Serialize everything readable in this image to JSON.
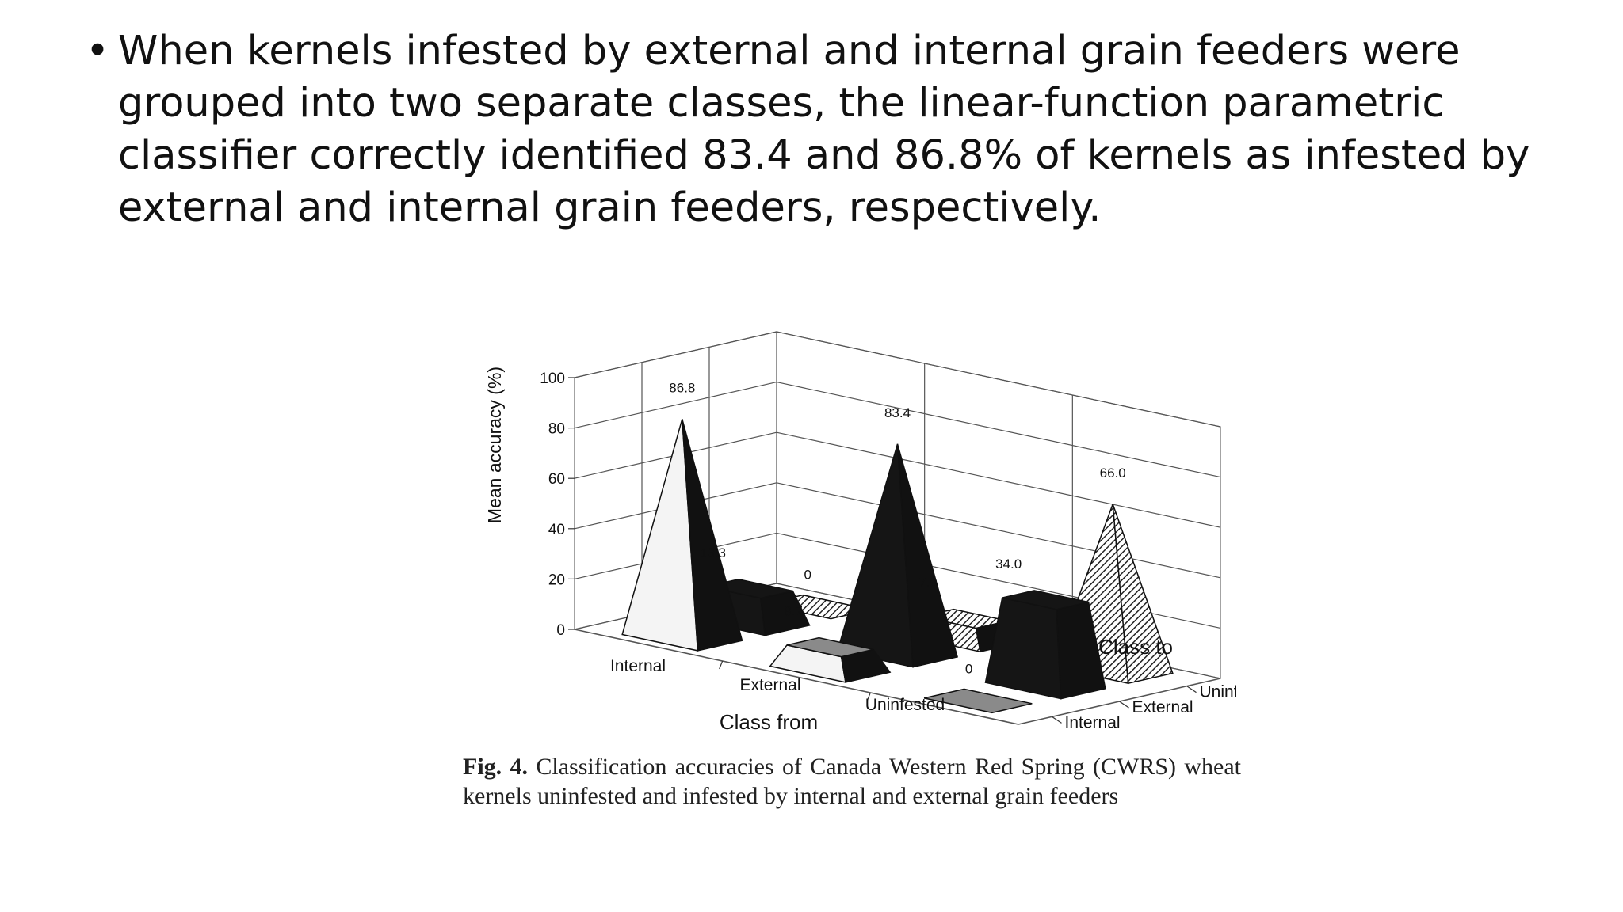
{
  "slide": {
    "bullet_symbol": "•",
    "bullet_text": "When kernels infested by external and internal grain feeders were grouped into two separate classes, the linear-function parametric classifier correctly identified 83.4 and 86.8% of kernels as infested by external and internal grain feeders, respectively."
  },
  "figure": {
    "caption_label": "Fig. 4.",
    "caption_text": "Classification accuracies of Canada Western Red Spring (CWRS) wheat kernels uninfested and infested by internal and external grain feeders"
  },
  "chart_data": {
    "type": "bar",
    "subtype": "3d-pyramid",
    "ylabel": "Mean accuracy (%)",
    "xlabel": "Class from",
    "zlabel": "Class to",
    "ylim": [
      0,
      100
    ],
    "yticks": [
      "0",
      "20",
      "40",
      "60",
      "80",
      "100"
    ],
    "x_categories": [
      "Internal",
      "External",
      "Uninfested"
    ],
    "z_categories": [
      "Internal",
      "External",
      "Uninfested"
    ],
    "grid": true,
    "points": [
      {
        "from": "Internal",
        "to": "Internal",
        "value": 86.8,
        "label": "86.8",
        "shape": "pyramid",
        "fill": "light"
      },
      {
        "from": "Internal",
        "to": "External",
        "value": 13.3,
        "label": "13.3",
        "shape": "block",
        "fill": "dark"
      },
      {
        "from": "Internal",
        "to": "Uninfested",
        "value": 0,
        "label": "0",
        "shape": "flat",
        "fill": "hatched"
      },
      {
        "from": "External",
        "to": "Internal",
        "value": 8.7,
        "label": "8.7",
        "shape": "block",
        "fill": "light"
      },
      {
        "from": "External",
        "to": "External",
        "value": 83.4,
        "label": "83.4",
        "shape": "pyramid",
        "fill": "dark"
      },
      {
        "from": "External",
        "to": "Uninfested",
        "value": 7.9,
        "label": "7.9",
        "shape": "block",
        "fill": "hatched"
      },
      {
        "from": "Uninfested",
        "to": "Internal",
        "value": 0,
        "label": "0",
        "shape": "flat",
        "fill": "gray"
      },
      {
        "from": "Uninfested",
        "to": "External",
        "value": 34.0,
        "label": "34.0",
        "shape": "block",
        "fill": "dark"
      },
      {
        "from": "Uninfested",
        "to": "Uninfested",
        "value": 66.0,
        "label": "66.0",
        "shape": "pyramid",
        "fill": "hatched"
      }
    ],
    "colors": {
      "dark": "#111111",
      "light": "#f4f4f4",
      "gray": "#8a8a8a",
      "hatched": "#777777"
    }
  }
}
